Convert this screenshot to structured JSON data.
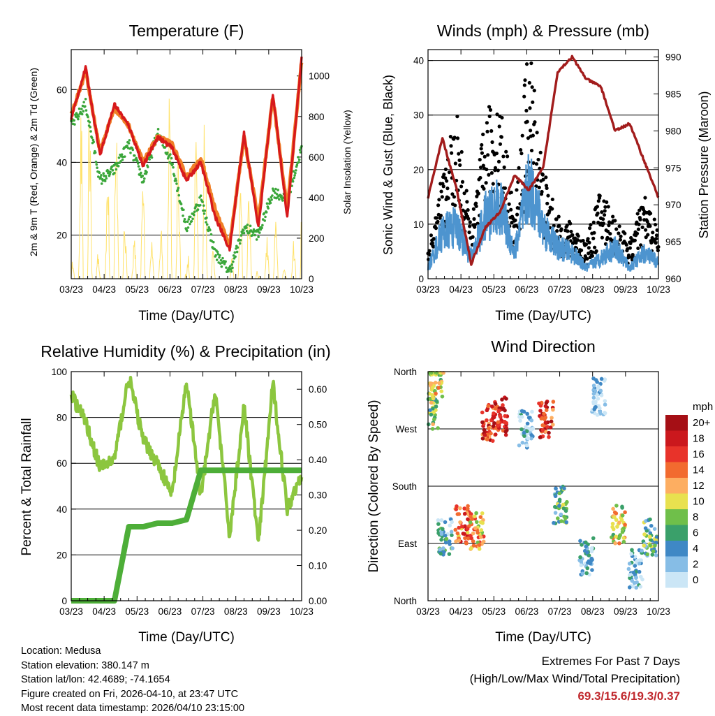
{
  "colors": {
    "t2m": "#d7191c",
    "t9m": "#f07f27",
    "td": "#3aa63a",
    "solar": "#ffe26b",
    "wind": "#4d94cf",
    "gust": "#000000",
    "pressure": "#a21c1c",
    "rh": "#8cc63f",
    "precip": "#4dae38",
    "extreme_values": "#c0282d"
  },
  "time_ticks": [
    "03/23",
    "04/23",
    "05/23",
    "06/23",
    "07/23",
    "08/23",
    "09/23",
    "10/23"
  ],
  "temperature_panel": {
    "title": "Temperature (F)",
    "xlabel": "Time (Day/UTC)",
    "ylabel_left": "2m & 9m T (Red, Orange) & 2m Td (Green)",
    "ylabel_right": "Solar Insolation (Yellow)",
    "left_ticks": [
      "20",
      "40",
      "60"
    ],
    "right_ticks": [
      "0",
      "200",
      "400",
      "600",
      "800",
      "1000"
    ]
  },
  "wind_panel": {
    "title": "Winds (mph) & Pressure (mb)",
    "xlabel": "Time (Day/UTC)",
    "ylabel_left": "Sonic Wind & Gust (Blue, Black)",
    "ylabel_right": "Station Pressure (Maroon)",
    "left_ticks": [
      "0",
      "10",
      "20",
      "30",
      "40"
    ],
    "right_ticks": [
      "960",
      "965",
      "970",
      "975",
      "980",
      "985",
      "990"
    ]
  },
  "rh_panel": {
    "title": "Relative Humidity (%) & Precipitation (in)",
    "xlabel": "Time (Day/UTC)",
    "ylabel_left": "Percent & Total Rainfall",
    "left_ticks": [
      "0",
      "20",
      "40",
      "60",
      "80",
      "100"
    ],
    "right_ticks": [
      "0.00",
      "0.10",
      "0.20",
      "0.30",
      "0.40",
      "0.50",
      "0.60"
    ]
  },
  "direction_panel": {
    "title": "Wind Direction",
    "xlabel": "Time (Day/UTC)",
    "ylabel_left": "Direction (Colored By Speed)",
    "dir_ticks": [
      "North",
      "West",
      "South",
      "East",
      "North"
    ],
    "legend_unit": "mph",
    "legend_labels": [
      "20+",
      "18",
      "16",
      "14",
      "12",
      "10",
      "8",
      "6",
      "4",
      "2",
      "0"
    ],
    "legend_colors": [
      "#a50f15",
      "#cb181d",
      "#e8332a",
      "#f26b2f",
      "#fdae61",
      "#e8e14f",
      "#6fbf4a",
      "#3aa06a",
      "#3f88c5",
      "#86bde6",
      "#cbe6f6"
    ]
  },
  "info": {
    "location": "Location: Medusa",
    "elevation": "Station elevation: 380.147 m",
    "latlon": "Station lat/lon: 42.4689; -74.1654",
    "created": "Figure created on Fri, 2026-04-10, at 23:47 UTC",
    "recent": "Most recent data timestamp: 2026/04/10 23:15:00"
  },
  "extremes": {
    "title": "Extremes For Past 7 Days",
    "subtitle": "(High/Low/Max Wind/Total Precipitation)",
    "values": "69.3/15.6/19.3/0.37"
  },
  "chart_data": [
    {
      "type": "line",
      "title": "Temperature (F)",
      "xlabel": "Time (Day/UTC)",
      "ylabel": "2m & 9m T (Red, Orange) & 2m Td (Green)",
      "ylim": [
        8,
        71
      ],
      "y2label": "Solar Insolation (Yellow)",
      "y2lim": [
        0,
        1130
      ],
      "x": [
        0,
        0.5,
        1,
        1.5,
        2,
        2.5,
        3,
        3.5,
        4,
        4.5,
        5,
        5.5,
        6,
        6.5,
        7,
        7.5,
        8
      ],
      "series": [
        {
          "name": "2m T",
          "values": [
            52,
            66,
            42,
            56,
            50,
            39,
            47,
            44,
            35,
            40,
            25,
            16,
            48,
            22,
            59,
            25,
            69
          ]
        },
        {
          "name": "9m T",
          "values": [
            53,
            65,
            43,
            55,
            50,
            40,
            47,
            45,
            36,
            41,
            27,
            17,
            47,
            24,
            58,
            27,
            68
          ]
        },
        {
          "name": "2m Td",
          "values": [
            50,
            56,
            35,
            38,
            45,
            35,
            48,
            40,
            22,
            30,
            15,
            10,
            22,
            20,
            32,
            30,
            44
          ]
        },
        {
          "name": "Solar",
          "axis": "right",
          "values": [
            0,
            1080,
            0,
            900,
            0,
            450,
            0,
            1000,
            0,
            1080,
            0,
            0,
            600,
            0,
            300,
            0,
            400
          ]
        }
      ]
    },
    {
      "type": "line",
      "title": "Winds (mph) & Pressure (mb)",
      "xlabel": "Time (Day/UTC)",
      "ylabel": "Sonic Wind & Gust (Blue, Black)",
      "ylim": [
        0,
        42
      ],
      "y2label": "Station Pressure (Maroon)",
      "y2lim": [
        960,
        991
      ],
      "x": [
        0,
        0.5,
        1,
        1.5,
        2,
        2.5,
        3,
        3.5,
        4,
        4.5,
        5,
        5.5,
        6,
        6.5,
        7,
        7.5,
        8
      ],
      "series": [
        {
          "name": "Pressure",
          "axis": "right",
          "values": [
            971,
            979,
            972,
            962,
            967,
            969,
            974,
            972,
            975,
            988,
            990,
            987,
            986,
            980,
            981,
            976,
            971
          ]
        },
        {
          "name": "Sonic Wind",
          "values": [
            2,
            9,
            10,
            4,
            12,
            14,
            5,
            18,
            10,
            6,
            5,
            2,
            4,
            6,
            2,
            5,
            3
          ]
        },
        {
          "name": "Gust",
          "values": [
            5,
            17,
            27,
            8,
            27,
            30,
            10,
            40,
            18,
            10,
            9,
            6,
            15,
            10,
            6,
            14,
            8
          ]
        }
      ]
    },
    {
      "type": "line",
      "title": "Relative Humidity (%) & Precipitation (in)",
      "xlabel": "Time (Day/UTC)",
      "ylabel": "Percent & Total Rainfall",
      "ylim": [
        0,
        100
      ],
      "y2lim": [
        0,
        0.65
      ],
      "x": [
        0,
        0.5,
        1,
        1.5,
        2,
        2.5,
        3,
        3.5,
        4,
        4.5,
        5,
        5.5,
        6,
        6.5,
        7,
        7.5,
        8
      ],
      "series": [
        {
          "name": "RH",
          "values": [
            90,
            78,
            58,
            62,
            98,
            70,
            60,
            46,
            96,
            45,
            92,
            28,
            85,
            25,
            95,
            40,
            56
          ]
        },
        {
          "name": "Total Precipitation",
          "axis": "right",
          "values": [
            0,
            0,
            0,
            0,
            0.21,
            0.21,
            0.22,
            0.22,
            0.23,
            0.37,
            0.37,
            0.37,
            0.37,
            0.37,
            0.37,
            0.37,
            0.37
          ]
        }
      ]
    },
    {
      "type": "scatter",
      "title": "Wind Direction",
      "xlabel": "Time (Day/UTC)",
      "ylabel": "Direction (Colored By Speed)",
      "ylim": [
        0,
        360
      ],
      "x": [
        0.1,
        0.3,
        0.6,
        1.2,
        1.7,
        2.1,
        2.5,
        3.4,
        4.1,
        4.6,
        5.5,
        5.9,
        6.6,
        7.2,
        7.7
      ],
      "series": [
        {
          "name": "Direction (deg)",
          "values": [
            300,
            340,
            100,
            120,
            110,
            280,
            290,
            270,
            285,
            150,
            70,
            320,
            120,
            50,
            100
          ]
        },
        {
          "name": "Speed (mph)",
          "values": [
            8,
            10,
            4,
            14,
            12,
            16,
            18,
            2,
            16,
            6,
            3,
            1,
            10,
            2,
            6
          ]
        }
      ]
    }
  ]
}
